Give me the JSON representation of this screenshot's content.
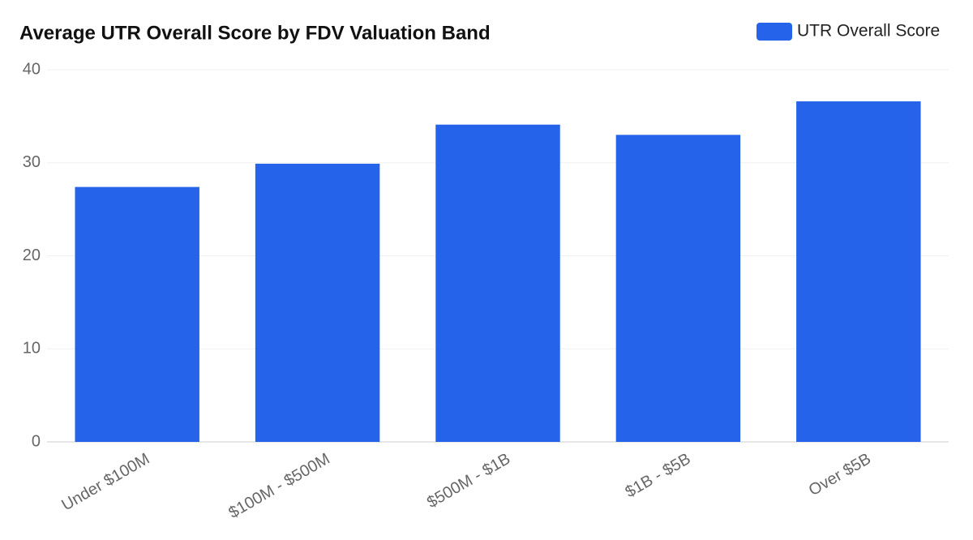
{
  "chart_data": {
    "type": "bar",
    "title": "Average UTR Overall Score by FDV Valuation Band",
    "categories": [
      "Under $100M",
      "$100M - $500M",
      "$500M - $1B",
      "$1B - $5B",
      "Over $5B"
    ],
    "series": [
      {
        "name": "UTR Overall Score",
        "color": "#2563eb",
        "values": [
          27.4,
          29.9,
          34.1,
          33.0,
          36.6
        ]
      }
    ],
    "ylim": [
      0,
      40
    ],
    "yticks": [
      0,
      10,
      20,
      30,
      40
    ],
    "grid": true
  }
}
